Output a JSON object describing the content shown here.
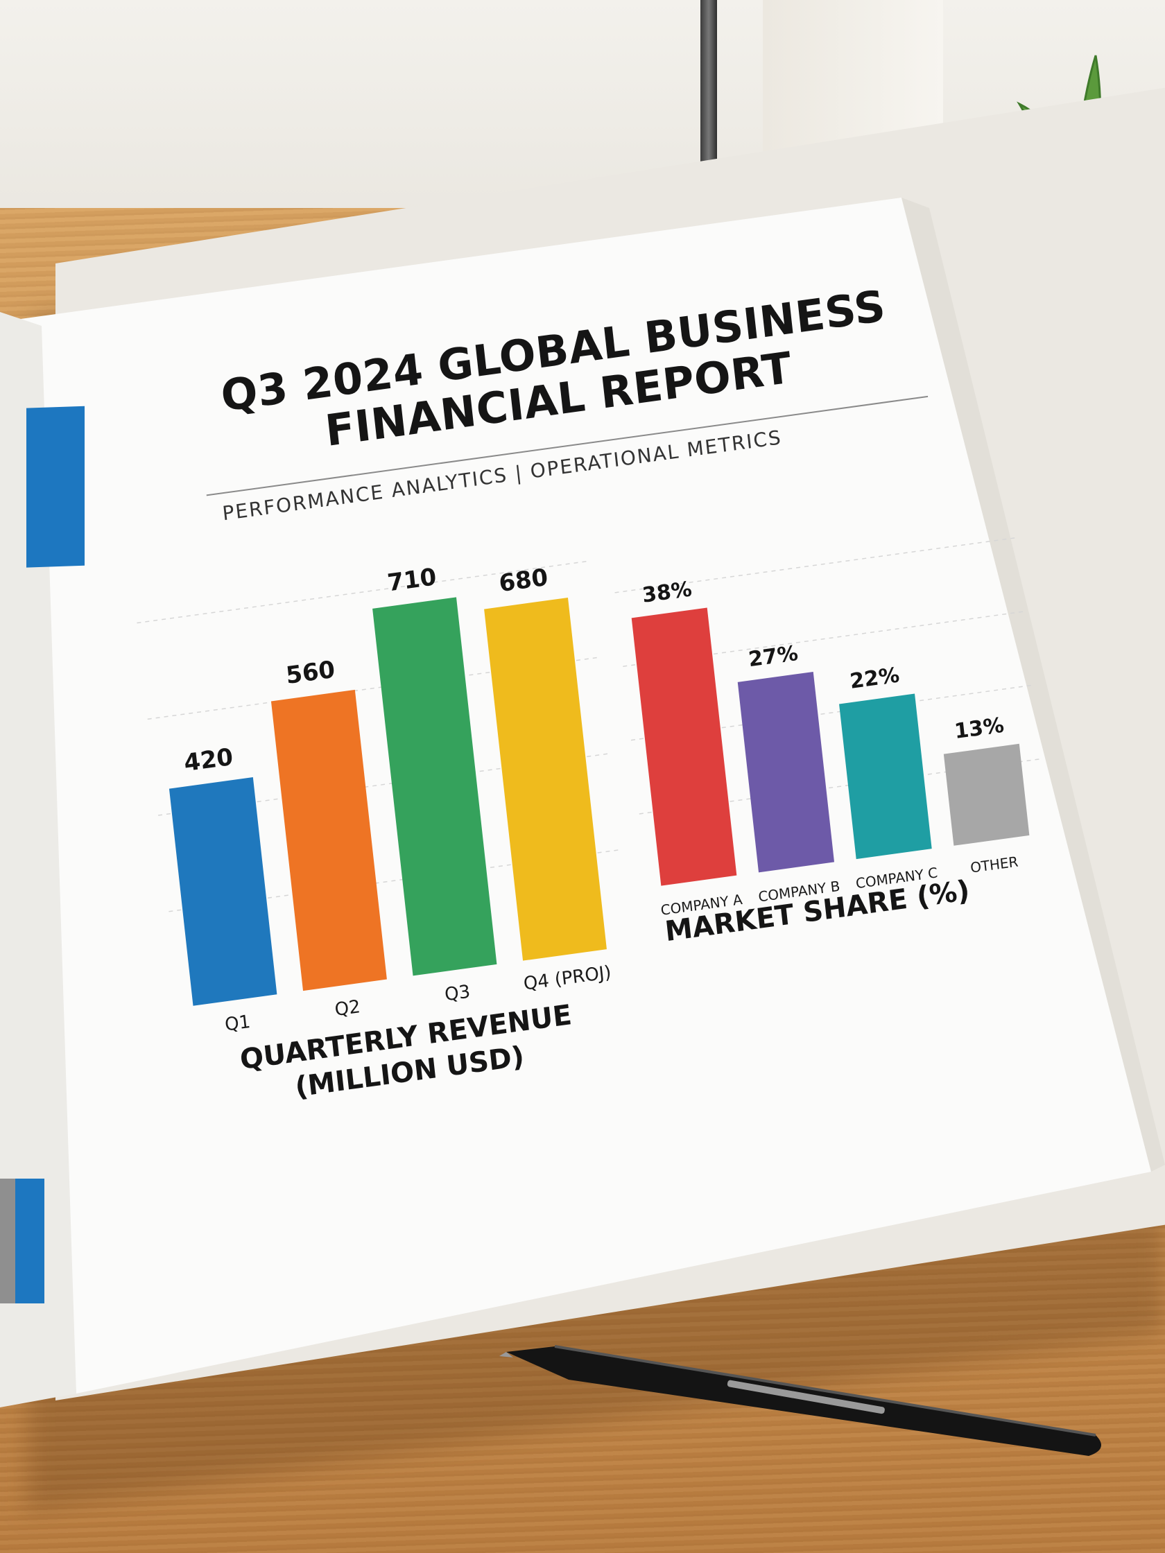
{
  "report": {
    "title_line1": "Q3 2024 GLOBAL BUSINESS",
    "title_line2": "FINANCIAL REPORT",
    "subtitle": "PERFORMANCE ANALYTICS | OPERATIONAL METRICS"
  },
  "colors": {
    "q1": "#1f78bd",
    "q2": "#ee7424",
    "q3": "#35a25c",
    "q4": "#efbb1d",
    "company_a": "#de3f3d",
    "company_b": "#6d5aa8",
    "company_c": "#1f9ea3",
    "other": "#a7a7a7"
  },
  "chart_data": [
    {
      "type": "bar",
      "title": "QUARTERLY REVENUE (MILLION USD)",
      "categories": [
        "Q1",
        "Q2",
        "Q3",
        "Q4 (PROJ)"
      ],
      "values": [
        420,
        560,
        710,
        680
      ],
      "data_labels": [
        "420",
        "560",
        "710",
        "680"
      ],
      "ylim": [
        0,
        800
      ],
      "grid": true
    },
    {
      "type": "bar",
      "title": "MARKET SHARE (%)",
      "categories": [
        "COMPANY A",
        "COMPANY B",
        "COMPANY C",
        "OTHER"
      ],
      "values": [
        38,
        27,
        22,
        13
      ],
      "data_labels": [
        "38%",
        "27%",
        "22%",
        "13%"
      ],
      "ylim": [
        0,
        45
      ],
      "grid": true
    }
  ]
}
